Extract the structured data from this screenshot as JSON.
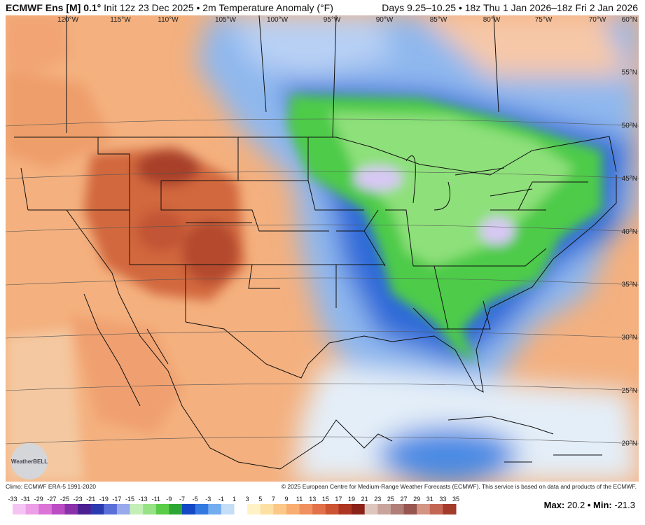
{
  "header": {
    "title_bold": "ECMWF Ens [M] 0.1°",
    "title_rest": "Init 12z 23 Dec 2025 • 2m Temperature Anomaly (°F)",
    "valid": "Days 9.25–10.25 • 18z Thu 1 Jan 2026–18z Fri 2 Jan 2026"
  },
  "map": {
    "lon_labels": [
      "120°W",
      "115°W",
      "110°W",
      "105°W",
      "100°W",
      "95°W",
      "90°W",
      "85°W",
      "80°W",
      "75°W",
      "70°W"
    ],
    "lat_labels": [
      "60°N",
      "55°N",
      "50°N",
      "45°N",
      "40°N",
      "35°N",
      "30°N",
      "25°N",
      "20°N"
    ],
    "logo": "WeatherBELL"
  },
  "footer": {
    "climo": "Climo: ECMWF ERA-5 1991-2020",
    "copyright": "© 2025 European Centre for Medium-Range Weather Forecasts (ECMWF). This service is based on data and products of the ECMWF."
  },
  "legend": {
    "ticks": [
      -33,
      -31,
      -29,
      -27,
      -25,
      -23,
      -21,
      -19,
      -17,
      -15,
      -13,
      -11,
      -9,
      -7,
      -5,
      -3,
      -1,
      1,
      3,
      5,
      7,
      9,
      11,
      13,
      15,
      17,
      19,
      21,
      23,
      25,
      27,
      29,
      31,
      33,
      35
    ],
    "colors": [
      "#f6c4f2",
      "#ec9ee6",
      "#dc74d8",
      "#bc4cc4",
      "#8a30a8",
      "#4a2092",
      "#2c3ab0",
      "#5a70d8",
      "#98aaec",
      "#c4f0b8",
      "#96e284",
      "#5acc48",
      "#2ea634",
      "#1448c4",
      "#3478e2",
      "#74acf0",
      "#c4def8",
      "#ffffff",
      "#fff2c6",
      "#fde0a4",
      "#fbc888",
      "#f8ae70",
      "#f09060",
      "#e27048",
      "#cc5432",
      "#ac3622",
      "#8a2218",
      "#dcc6be",
      "#c8a49c",
      "#b07e76",
      "#985650",
      "#d49484",
      "#c46654",
      "#a43a2a"
    ]
  },
  "stats": {
    "max_label": "Max:",
    "max": 20.2,
    "sep": "•",
    "min_label": "Min:",
    "min": -21.3
  }
}
